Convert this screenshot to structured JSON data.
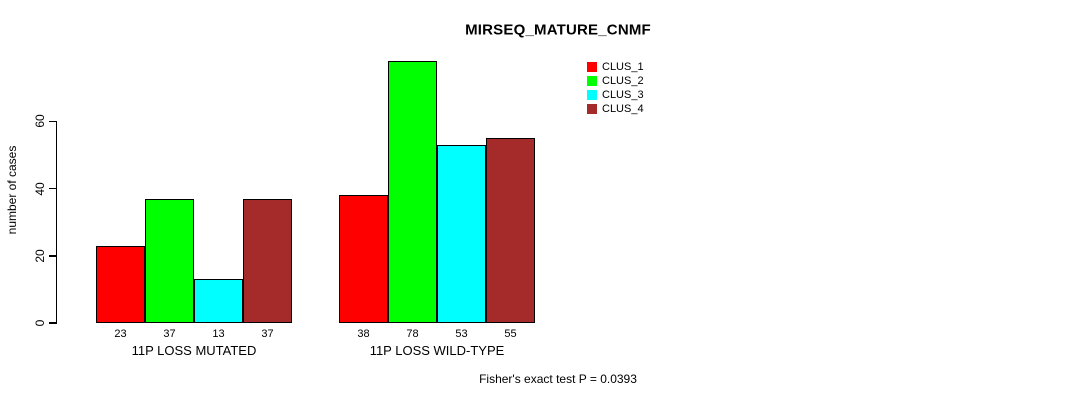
{
  "chart_data": {
    "type": "bar",
    "title": "MIRSEQ_MATURE_CNMF",
    "ylabel": "number of cases",
    "xlabel": "",
    "categories": [
      "11P LOSS MUTATED",
      "11P LOSS WILD-TYPE"
    ],
    "series": [
      {
        "name": "CLUS_1",
        "color": "#FF0000",
        "values": [
          23,
          38
        ]
      },
      {
        "name": "CLUS_2",
        "color": "#00FF00",
        "values": [
          37,
          78
        ]
      },
      {
        "name": "CLUS_3",
        "color": "#00FFFF",
        "values": [
          13,
          53
        ]
      },
      {
        "name": "CLUS_4",
        "color": "#A52A2A",
        "values": [
          37,
          55
        ]
      }
    ],
    "yticks": [
      0,
      20,
      40,
      60
    ],
    "ylim": [
      0,
      80
    ],
    "bar_value_labels": true,
    "grid": false,
    "legend_position": "top-right",
    "footnote": "Fisher's exact test P = 0.0393"
  }
}
